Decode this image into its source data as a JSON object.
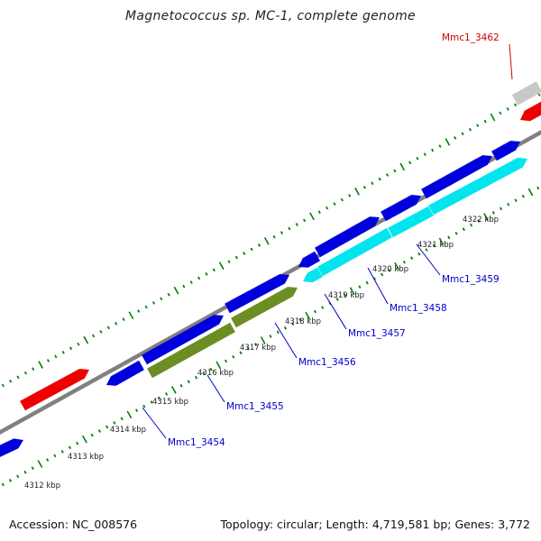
{
  "title": "Magnetococcus sp. MC-1, complete genome",
  "footer": {
    "accession_label": "Accession:",
    "accession": "NC_008576",
    "topology_label": "Topology:",
    "topology": "circular",
    "length_label": "Length:",
    "length": "4,719,581 bp",
    "genes_label": "Genes:",
    "genes": "3,772"
  },
  "colors": {
    "forward_gene": "#0000dd",
    "reverse_gene": "#00e5ee",
    "highlight_gene": "#6b8e23",
    "rna": "#ee0000",
    "other": "#c8c8c8",
    "backbone": "#808080",
    "ticks": "#008000",
    "label_blue": "#0000cc",
    "label_red": "#cc0000"
  },
  "scale_ticks": [
    "4312 kbp",
    "4313 kbp",
    "4314 kbp",
    "4315 kbp",
    "4316 kbp",
    "4317 kbp",
    "4318 kbp",
    "4319 kbp",
    "4320 kbp",
    "4321 kbp",
    "4322 kbp"
  ],
  "gene_labels": [
    {
      "name": "Mmc1_3454",
      "color": "blue"
    },
    {
      "name": "Mmc1_3455",
      "color": "blue"
    },
    {
      "name": "Mmc1_3456",
      "color": "blue"
    },
    {
      "name": "Mmc1_3457",
      "color": "blue"
    },
    {
      "name": "Mmc1_3458",
      "color": "blue"
    },
    {
      "name": "Mmc1_3459",
      "color": "blue"
    },
    {
      "name": "Mmc1_3462",
      "color": "red"
    }
  ]
}
